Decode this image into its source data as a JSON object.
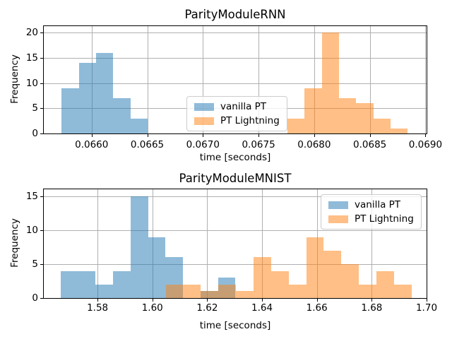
{
  "colors": {
    "series_blue": "#1f77b4",
    "series_orange": "#ff7f0e",
    "bar_alpha": 0.5,
    "grid": "#b0b0b0",
    "spine": "#000000",
    "text": "#000000",
    "legend_border": "#cccccc"
  },
  "legend": {
    "entries": [
      {
        "label": "vanilla PT",
        "color_key": "series_blue"
      },
      {
        "label": "PT Lightning",
        "color_key": "series_orange"
      }
    ]
  },
  "chart_data": [
    {
      "type": "histogram",
      "title": "ParityModuleRNN",
      "xlabel": "time [seconds]",
      "ylabel": "Frequency",
      "xlim": [
        0.06557,
        0.06901
      ],
      "ylim": [
        0,
        21.26
      ],
      "grid": true,
      "legend_loc": "center",
      "xticks": [
        {
          "value": 0.066,
          "label": "0.0660"
        },
        {
          "value": 0.0665,
          "label": "0.0665"
        },
        {
          "value": 0.067,
          "label": "0.0670"
        },
        {
          "value": 0.0675,
          "label": "0.0675"
        },
        {
          "value": 0.068,
          "label": "0.0680"
        },
        {
          "value": 0.0685,
          "label": "0.0685"
        },
        {
          "value": 0.069,
          "label": "0.0690"
        }
      ],
      "yticks": [
        0,
        5,
        10,
        15,
        20
      ],
      "series": [
        {
          "name": "vanilla PT",
          "color_key": "series_blue",
          "bin_start": 0.06573,
          "bin_width": 0.000155,
          "counts": [
            9,
            14,
            16,
            7,
            3
          ]
        },
        {
          "name": "PT Lightning",
          "color_key": "series_orange",
          "bin_start": 0.06776,
          "bin_width": 0.0001545,
          "counts": [
            3,
            9,
            20,
            7,
            6,
            3,
            1
          ]
        }
      ]
    },
    {
      "type": "histogram",
      "title": "ParityModuleMNIST",
      "xlabel": "time [seconds]",
      "ylabel": "Frequency",
      "xlim": [
        1.5604,
        1.7
      ],
      "ylim": [
        0,
        16.04
      ],
      "grid": true,
      "legend_loc": "upper right",
      "xticks": [
        {
          "value": 1.58,
          "label": "1.58"
        },
        {
          "value": 1.6,
          "label": "1.60"
        },
        {
          "value": 1.62,
          "label": "1.62"
        },
        {
          "value": 1.64,
          "label": "1.64"
        },
        {
          "value": 1.66,
          "label": "1.66"
        },
        {
          "value": 1.68,
          "label": "1.68"
        },
        {
          "value": 1.7,
          "label": "1.70"
        }
      ],
      "yticks": [
        0,
        5,
        10,
        15
      ],
      "series": [
        {
          "name": "vanilla PT",
          "color_key": "series_blue",
          "bin_start": 1.5665,
          "bin_width": 0.00638,
          "counts": [
            4,
            4,
            2,
            4,
            15,
            9,
            6,
            0,
            1,
            3
          ]
        },
        {
          "name": "PT Lightning",
          "color_key": "series_orange",
          "bin_start": 1.6049,
          "bin_width": 0.0064,
          "counts": [
            2,
            2,
            1,
            2,
            1,
            6,
            4,
            2,
            9,
            7,
            5,
            2,
            4,
            2
          ]
        }
      ]
    }
  ]
}
